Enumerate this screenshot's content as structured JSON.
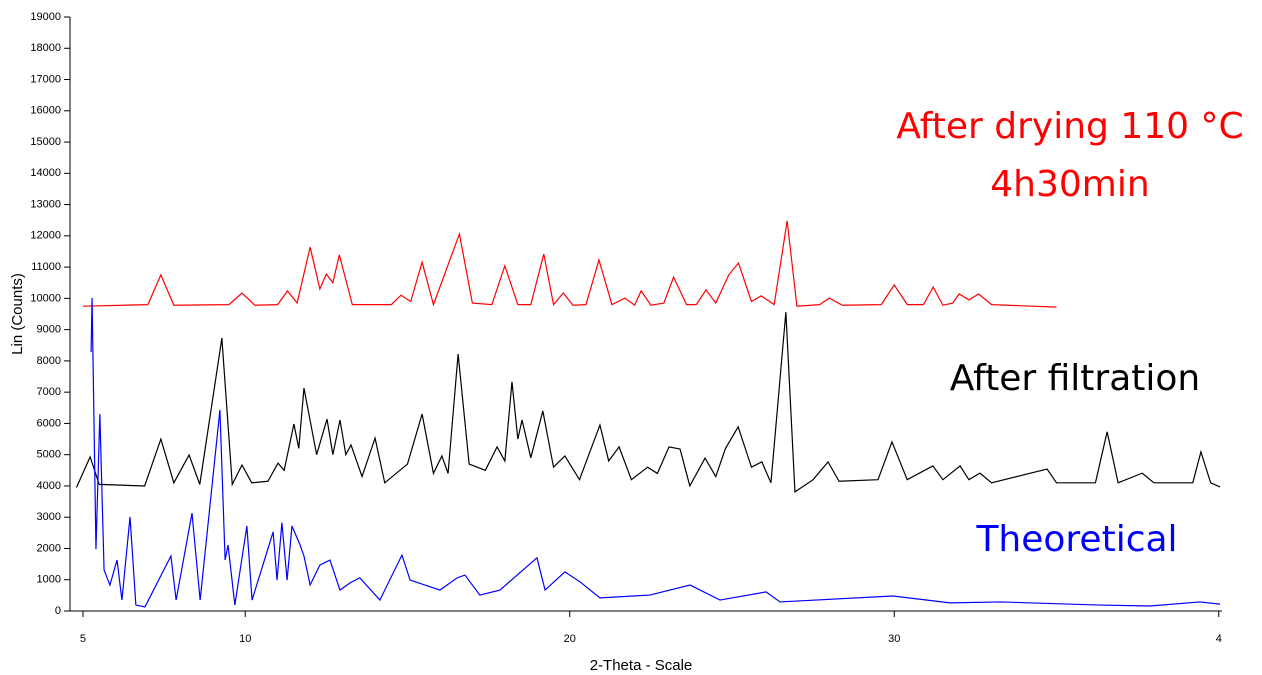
{
  "chart_data": {
    "type": "line",
    "x_label": "2-Theta - Scale",
    "y_label": "Lin (Counts)",
    "xlim": [
      4.6,
      40.1
    ],
    "ylim": [
      0,
      19000
    ],
    "xticks": [
      5,
      10,
      20,
      30,
      {
        "value": 40,
        "label": "4"
      }
    ],
    "yticks": [
      0,
      1000,
      2000,
      3000,
      4000,
      5000,
      6000,
      7000,
      8000,
      9000,
      10000,
      11000,
      12000,
      13000,
      14000,
      15000,
      16000,
      17000,
      18000,
      19000
    ],
    "annotations": [
      {
        "text": "After drying 110 °C",
        "color": "#ff0000"
      },
      {
        "text": "4h30min",
        "color": "#ff0000"
      },
      {
        "text": "After filtration",
        "color": "#000000"
      },
      {
        "text": "Theoretical",
        "color": "#0000ff"
      }
    ],
    "series": [
      {
        "color": "#ff0000",
        "x": [
          5.0,
          7.0,
          7.4,
          7.8,
          9.5,
          9.9,
          10.3,
          11.0,
          11.3,
          11.6,
          12.0,
          12.3,
          12.5,
          12.7,
          12.9,
          13.3,
          14.5,
          14.8,
          15.1,
          15.45,
          15.8,
          16.6,
          17.0,
          17.6,
          18.0,
          18.4,
          18.8,
          19.2,
          19.5,
          19.8,
          20.1,
          20.5,
          20.9,
          21.3,
          21.7,
          22.0,
          22.2,
          22.5,
          22.9,
          23.2,
          23.6,
          23.9,
          24.2,
          24.5,
          24.9,
          25.2,
          25.6,
          25.9,
          26.3,
          26.7,
          27.0,
          27.7,
          28.0,
          28.4,
          29.6,
          30.0,
          30.4,
          30.9,
          31.2,
          31.5,
          31.8,
          32.0,
          32.3,
          32.6,
          33.0,
          35.0
        ],
        "values": [
          9750,
          9800,
          10750,
          9780,
          9800,
          10170,
          9780,
          9800,
          10240,
          9850,
          11640,
          10300,
          10780,
          10500,
          11390,
          9800,
          9800,
          10100,
          9900,
          11160,
          9800,
          12060,
          9850,
          9800,
          11040,
          9800,
          9800,
          11420,
          9800,
          10170,
          9780,
          9800,
          11230,
          9800,
          10010,
          9780,
          10240,
          9780,
          9850,
          10680,
          9800,
          9800,
          10270,
          9850,
          10750,
          11130,
          9900,
          10080,
          9800,
          12480,
          9750,
          9800,
          10010,
          9780,
          9800,
          10430,
          9800,
          9800,
          10360,
          9780,
          9850,
          10140,
          9950,
          10140,
          9800,
          9720
        ]
      },
      {
        "color": "#000000",
        "x": [
          4.8,
          5.22,
          5.5,
          6.9,
          7.4,
          7.8,
          8.27,
          8.6,
          9.28,
          9.6,
          9.9,
          10.2,
          10.7,
          11.01,
          11.2,
          11.5,
          11.65,
          11.81,
          12.2,
          12.52,
          12.7,
          12.92,
          13.1,
          13.26,
          13.6,
          14.0,
          14.3,
          15.0,
          15.45,
          15.8,
          16.06,
          16.25,
          16.56,
          16.9,
          17.4,
          17.76,
          18.0,
          18.22,
          18.4,
          18.53,
          18.8,
          19.17,
          19.5,
          19.85,
          20.3,
          20.93,
          21.2,
          21.52,
          21.9,
          22.4,
          22.7,
          23.06,
          23.4,
          23.7,
          24.17,
          24.5,
          24.8,
          25.19,
          25.6,
          25.92,
          26.2,
          26.66,
          26.94,
          27.5,
          27.96,
          28.3,
          29.5,
          29.93,
          30.4,
          31.19,
          31.5,
          32.03,
          32.3,
          32.64,
          33.0,
          34.71,
          35.0,
          36.2,
          36.56,
          36.9,
          37.64,
          38.0,
          39.2,
          39.45,
          39.75,
          40.04
        ],
        "values": [
          3950,
          4930,
          4050,
          4000,
          5500,
          4100,
          4990,
          4050,
          8730,
          4050,
          4670,
          4100,
          4150,
          4730,
          4500,
          5980,
          5200,
          7130,
          5000,
          6140,
          5000,
          6110,
          5000,
          5310,
          4300,
          5530,
          4100,
          4700,
          6300,
          4400,
          4960,
          4400,
          8220,
          4700,
          4500,
          5250,
          4800,
          7330,
          5500,
          6110,
          4900,
          6400,
          4600,
          4960,
          4200,
          5950,
          4800,
          5250,
          4200,
          4600,
          4400,
          5250,
          5180,
          4000,
          4890,
          4300,
          5200,
          5890,
          4600,
          4770,
          4100,
          9560,
          3810,
          4200,
          4770,
          4150,
          4200,
          5410,
          4200,
          4640,
          4200,
          4640,
          4200,
          4410,
          4100,
          4540,
          4100,
          4100,
          5730,
          4100,
          4410,
          4100,
          4100,
          5090,
          4100,
          3970
        ]
      },
      {
        "color": "#0000ff",
        "x": [
          5.25,
          5.28,
          5.4,
          5.52,
          5.65,
          5.83,
          6.05,
          6.2,
          6.45,
          6.63,
          6.91,
          7.71,
          7.87,
          8.36,
          8.61,
          9.22,
          9.38,
          9.47,
          9.68,
          10.05,
          10.21,
          10.86,
          10.98,
          11.13,
          11.29,
          11.44,
          11.69,
          11.81,
          12.0,
          12.3,
          12.61,
          12.92,
          13.23,
          13.53,
          14.15,
          14.83,
          15.08,
          16.0,
          16.53,
          16.77,
          17.23,
          17.85,
          18.99,
          19.24,
          19.85,
          20.32,
          20.93,
          22.47,
          23.71,
          24.63,
          26.05,
          26.48,
          29.96,
          31.72,
          33.26,
          36.34,
          37.88,
          39.42,
          40.04
        ],
        "values": [
          8280,
          10010,
          1980,
          6300,
          1310,
          830,
          1630,
          350,
          3010,
          190,
          130,
          1760,
          350,
          3130,
          350,
          6430,
          1630,
          2110,
          190,
          2720,
          350,
          2530,
          990,
          2820,
          990,
          2720,
          2110,
          1760,
          830,
          1470,
          1630,
          670,
          900,
          1060,
          350,
          1790,
          990,
          670,
          1060,
          1150,
          510,
          670,
          1700,
          670,
          1250,
          930,
          420,
          510,
          830,
          350,
          610,
          290,
          480,
          260,
          290,
          190,
          160,
          290,
          220
        ]
      }
    ]
  }
}
